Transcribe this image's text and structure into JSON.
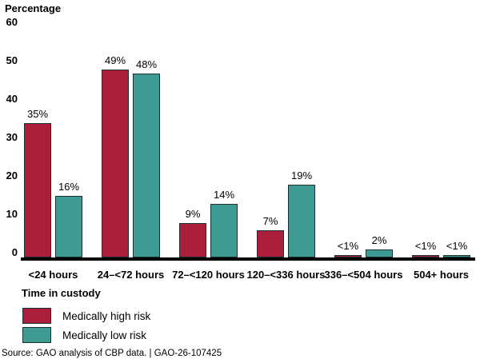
{
  "chart_data": {
    "type": "bar",
    "title": "Percentage",
    "xlabel": "Time in custody",
    "ylabel": "Percentage",
    "ylim": [
      0,
      60
    ],
    "yticks": [
      0,
      10,
      20,
      30,
      40,
      50,
      60
    ],
    "grid": false,
    "legend_position": "bottom-left",
    "categories": [
      "<24 hours",
      "24–<72 hours",
      "72–<120 hours",
      "120–<336 hours",
      "336–<504 hours",
      "504+ hours"
    ],
    "series": [
      {
        "name": "Medically high risk",
        "color": "#AC1F3C",
        "values": [
          35,
          49,
          9,
          7,
          0.5,
          0.5
        ],
        "value_labels": [
          "35%",
          "49%",
          "9%",
          "7%",
          "<1%",
          "<1%"
        ]
      },
      {
        "name": "Medically low risk",
        "color": "#3E9B93",
        "values": [
          16,
          48,
          14,
          19,
          2,
          0.5
        ],
        "value_labels": [
          "16%",
          "48%",
          "14%",
          "19%",
          "2%",
          "<1%"
        ]
      }
    ]
  },
  "footer": {
    "source": "Source: GAO analysis of CBP data.  |  GAO-26-107425"
  }
}
